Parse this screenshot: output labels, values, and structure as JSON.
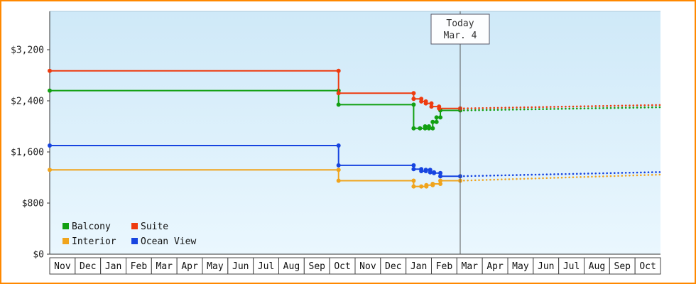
{
  "frame": {
    "border_color": "#ff8800",
    "background": "#ffffff"
  },
  "chart_data": {
    "type": "line",
    "subtype": "step-line-price-history-with-dotted-forecast",
    "title": "",
    "plot": {
      "bg_top": "#cfe9f8",
      "bg_bottom": "#eaf7fe"
    },
    "x_axis": {
      "months": [
        "Nov",
        "Dec",
        "Jan",
        "Feb",
        "Mar",
        "Apr",
        "May",
        "Jun",
        "Jul",
        "Aug",
        "Sep",
        "Oct",
        "Nov",
        "Dec",
        "Jan",
        "Feb",
        "Mar",
        "Apr",
        "May",
        "Jun",
        "Jul",
        "Aug",
        "Sep",
        "Oct"
      ]
    },
    "y_axis": {
      "ticks": [
        {
          "label": "$0",
          "value": 0
        },
        {
          "label": "$800",
          "value": 800
        },
        {
          "label": "$1,600",
          "value": 1600
        },
        {
          "label": "$2,400",
          "value": 2400
        },
        {
          "label": "$3,200",
          "value": 3200
        }
      ],
      "max_value": 3800
    },
    "today": {
      "title": "Today",
      "date": "Mar. 4",
      "x_months": 16.13
    },
    "series": [
      {
        "name": "Interior",
        "color": "#f0a41c",
        "points": [
          [
            0,
            1320
          ],
          [
            11.35,
            1150
          ],
          [
            14.3,
            1060
          ],
          [
            14.6,
            1060
          ],
          [
            14.8,
            1080
          ],
          [
            15.05,
            1100
          ],
          [
            15.35,
            1150
          ]
        ],
        "forecast_end": 1245
      },
      {
        "name": "Ocean View",
        "color": "#1744e0",
        "points": [
          [
            0,
            1700
          ],
          [
            11.35,
            1390
          ],
          [
            14.3,
            1330
          ],
          [
            14.6,
            1300
          ],
          [
            14.78,
            1320
          ],
          [
            14.95,
            1280
          ],
          [
            15.1,
            1270
          ],
          [
            15.35,
            1220
          ]
        ],
        "forecast_end": 1285
      },
      {
        "name": "Balcony",
        "color": "#12a012",
        "points": [
          [
            0,
            2560
          ],
          [
            11.35,
            2340
          ],
          [
            14.3,
            1970
          ],
          [
            14.55,
            1970
          ],
          [
            14.75,
            2000
          ],
          [
            14.9,
            1970
          ],
          [
            15.05,
            2070
          ],
          [
            15.2,
            2140
          ],
          [
            15.35,
            2250
          ]
        ],
        "forecast_end": 2300
      },
      {
        "name": "Suite",
        "color": "#ee3b0f",
        "points": [
          [
            0,
            2870
          ],
          [
            11.35,
            2520
          ],
          [
            14.3,
            2430
          ],
          [
            14.6,
            2390
          ],
          [
            14.78,
            2360
          ],
          [
            15.0,
            2310
          ],
          [
            15.3,
            2280
          ]
        ],
        "forecast_end": 2335
      }
    ],
    "legend": {
      "rows": [
        [
          "Balcony",
          "Suite"
        ],
        [
          "Interior",
          "Ocean View"
        ]
      ]
    }
  }
}
